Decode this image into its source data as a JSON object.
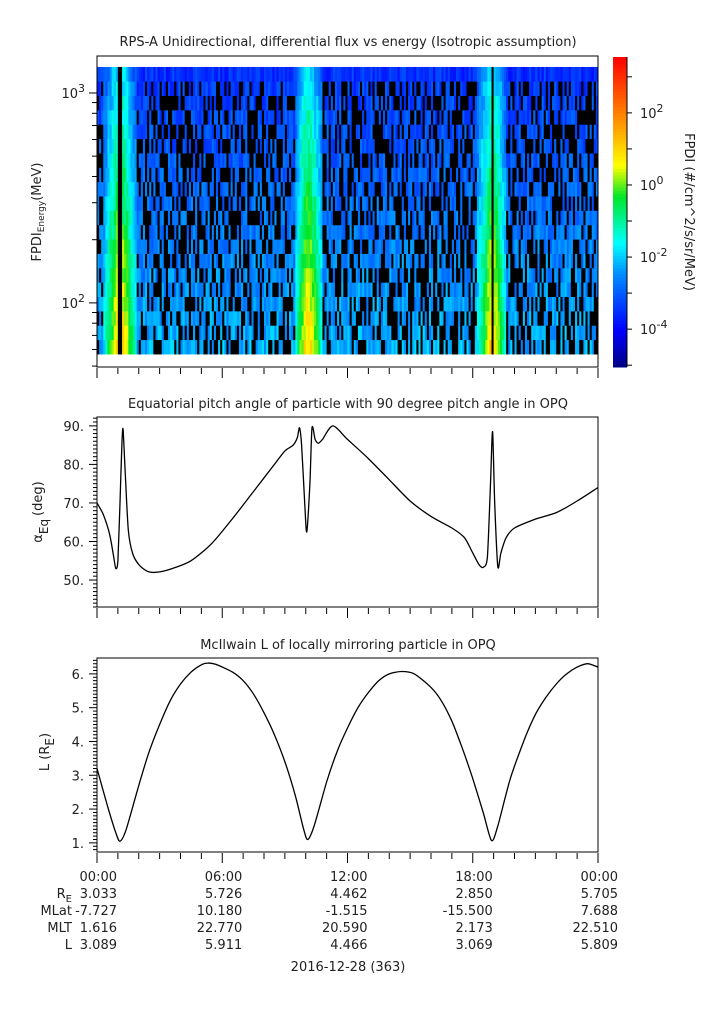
{
  "chart_data": [
    {
      "type": "heatmap",
      "title": "RPS-A Unidirectional, differential flux vs energy (Isotropic assumption)",
      "ylabel_main": "FPDI",
      "ylabel_sub": "Energy",
      "ylabel_unit": "(MeV)",
      "yscale": "log",
      "ylim": [
        49.5,
        1500
      ],
      "yticks": [
        {
          "value": 100,
          "base": "10",
          "exp": "2"
        },
        {
          "value": 1000,
          "base": "10",
          "exp": "3"
        }
      ],
      "energy_range_mev": [
        57,
        1330
      ],
      "energy_channels": 20,
      "colorbar": {
        "label": "FPDI (#/cm^2/s/sr/MeV)",
        "scale": "log",
        "range_log10": [
          -5.05,
          3.55
        ],
        "ticks": [
          {
            "log": 2,
            "base": "10",
            "exp": "2"
          },
          {
            "log": 0,
            "base": "10",
            "exp": "0"
          },
          {
            "log": -2,
            "base": "10",
            "exp": "-2"
          },
          {
            "log": -4,
            "base": "10",
            "exp": "-4"
          }
        ]
      },
      "note_fill": "black cells = no counts"
    },
    {
      "type": "line",
      "title": "Equatorial pitch angle of particle with 90 degree pitch angle in OPQ",
      "ylabel_main": "α",
      "ylabel_sub": "Eq",
      "ylabel_unit": "(deg)",
      "ylim": [
        43,
        92.3
      ],
      "yticks": [
        {
          "value": 50,
          "label": "50."
        },
        {
          "value": 60,
          "label": "60."
        },
        {
          "value": 70,
          "label": "70."
        },
        {
          "value": 80,
          "label": "80."
        },
        {
          "value": 90,
          "label": "90."
        }
      ],
      "x_hours": [
        0,
        0.3,
        0.6,
        0.8,
        0.9,
        1.0,
        1.1,
        1.2,
        1.25,
        1.35,
        1.5,
        1.7,
        2.0,
        2.4,
        2.8,
        3.5,
        4.5,
        5.5,
        6.5,
        7.5,
        8.5,
        9.0,
        9.4,
        9.6,
        9.7,
        9.8,
        9.95,
        10.05,
        10.2,
        10.3,
        10.45,
        10.6,
        10.8,
        11.3,
        12,
        13,
        14,
        15,
        16,
        17,
        17.6,
        18.0,
        18.3,
        18.5,
        18.7,
        18.85,
        18.95,
        19.05,
        19.2,
        19.35,
        19.6,
        20,
        21,
        22,
        23,
        24
      ],
      "y": [
        70,
        67,
        62,
        56,
        53,
        55,
        70,
        86,
        89,
        78,
        63,
        57,
        54,
        52.3,
        52,
        52.8,
        55,
        59.5,
        66,
        73,
        80,
        83.5,
        85,
        87,
        89.5,
        85,
        70,
        62.5,
        75,
        89.5,
        86.5,
        85.5,
        86.5,
        90,
        86.5,
        81.5,
        76,
        70.5,
        66.5,
        63.5,
        61,
        57,
        54,
        53.3,
        56,
        75,
        88.5,
        70,
        53.5,
        57,
        61,
        63.5,
        65.8,
        67.5,
        70.5,
        74
      ]
    },
    {
      "type": "line",
      "title": "McIlwain L of locally mirroring particle in OPQ",
      "ylabel_main": "L (R",
      "ylabel_sub": "E",
      "ylabel_unit": ")",
      "ylim": [
        0.73,
        6.47
      ],
      "yticks": [
        {
          "value": 1,
          "label": "1."
        },
        {
          "value": 2,
          "label": "2."
        },
        {
          "value": 3,
          "label": "3."
        },
        {
          "value": 4,
          "label": "4."
        },
        {
          "value": 5,
          "label": "5."
        },
        {
          "value": 6,
          "label": "6."
        }
      ],
      "x_hours": [
        0,
        0.5,
        0.9,
        1.1,
        1.4,
        2,
        2.5,
        3,
        3.5,
        4,
        4.5,
        5,
        5.3,
        5.7,
        6.5,
        7,
        7.5,
        8,
        8.5,
        9,
        9.5,
        9.9,
        10.1,
        10.4,
        11,
        11.5,
        12,
        12.5,
        13,
        13.5,
        14,
        14.6,
        15.2,
        16,
        16.5,
        17,
        17.5,
        18,
        18.5,
        18.9,
        19.2,
        19.8,
        20.5,
        21,
        21.5,
        22,
        22.5,
        23,
        23.5,
        24
      ],
      "y": [
        3.2,
        2.1,
        1.3,
        1.05,
        1.4,
        2.7,
        3.7,
        4.5,
        5.2,
        5.7,
        6.05,
        6.27,
        6.32,
        6.28,
        6.05,
        5.8,
        5.4,
        4.85,
        4.2,
        3.4,
        2.4,
        1.4,
        1.1,
        1.5,
        2.8,
        3.7,
        4.4,
        5.0,
        5.45,
        5.8,
        6.0,
        6.07,
        6.0,
        5.6,
        5.2,
        4.6,
        3.8,
        2.9,
        1.9,
        1.07,
        1.5,
        2.9,
        4.1,
        4.8,
        5.3,
        5.7,
        6.0,
        6.2,
        6.3,
        6.2
      ]
    }
  ],
  "x_axis": {
    "range_hours": [
      0,
      24
    ],
    "tick_hours": [
      0,
      6,
      12,
      18,
      24
    ],
    "tick_labels": [
      "00:00",
      "06:00",
      "12:00",
      "18:00",
      "00:00"
    ],
    "date_label": "2016-12-28 (363)"
  },
  "ephemeris": [
    {
      "label": "R",
      "sub": "E",
      "values": [
        "3.033",
        "5.726",
        "4.462",
        "2.850",
        "5.705"
      ]
    },
    {
      "label": "MLat",
      "sub": "",
      "values": [
        "-7.727",
        "10.180",
        "-1.515",
        "-15.500",
        "7.688"
      ]
    },
    {
      "label": "MLT",
      "sub": "",
      "values": [
        "1.616",
        "22.770",
        "20.590",
        "2.173",
        "22.510"
      ]
    },
    {
      "label": "L",
      "sub": "",
      "values": [
        "3.089",
        "5.911",
        "4.466",
        "3.069",
        "5.809"
      ]
    }
  ],
  "colors": {
    "line": "#000000",
    "axis": "#000000",
    "nodata": "#000000"
  }
}
